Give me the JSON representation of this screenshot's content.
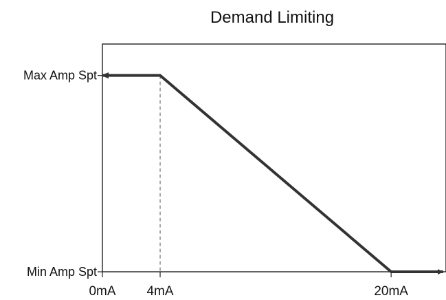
{
  "chart_data": {
    "type": "line",
    "title": "Demand Limiting",
    "xlabel": "",
    "ylabel": "",
    "x_tick_labels": [
      "0mA",
      "4mA",
      "20mA"
    ],
    "x_ticks": [
      0,
      4,
      20
    ],
    "y_tick_labels": [
      "Min Amp Spt",
      "Max Amp Spt"
    ],
    "y_ticks": [
      0,
      1
    ],
    "xlim": [
      0,
      23.8
    ],
    "ylim": [
      0,
      1.16
    ],
    "grid": false,
    "series": [
      {
        "x": [
          0,
          4,
          20,
          23.6
        ],
        "y": [
          1,
          1,
          0,
          0
        ]
      }
    ],
    "arrows": [
      {
        "at": "start",
        "direction": "left"
      },
      {
        "at": "end",
        "direction": "right"
      }
    ],
    "reference_lines": [
      {
        "x": 4,
        "y_from": 0,
        "y_to": 1,
        "style": "dashed"
      }
    ],
    "colors": {
      "line": "#333333",
      "axes": "#222222",
      "text": "#111111"
    }
  }
}
